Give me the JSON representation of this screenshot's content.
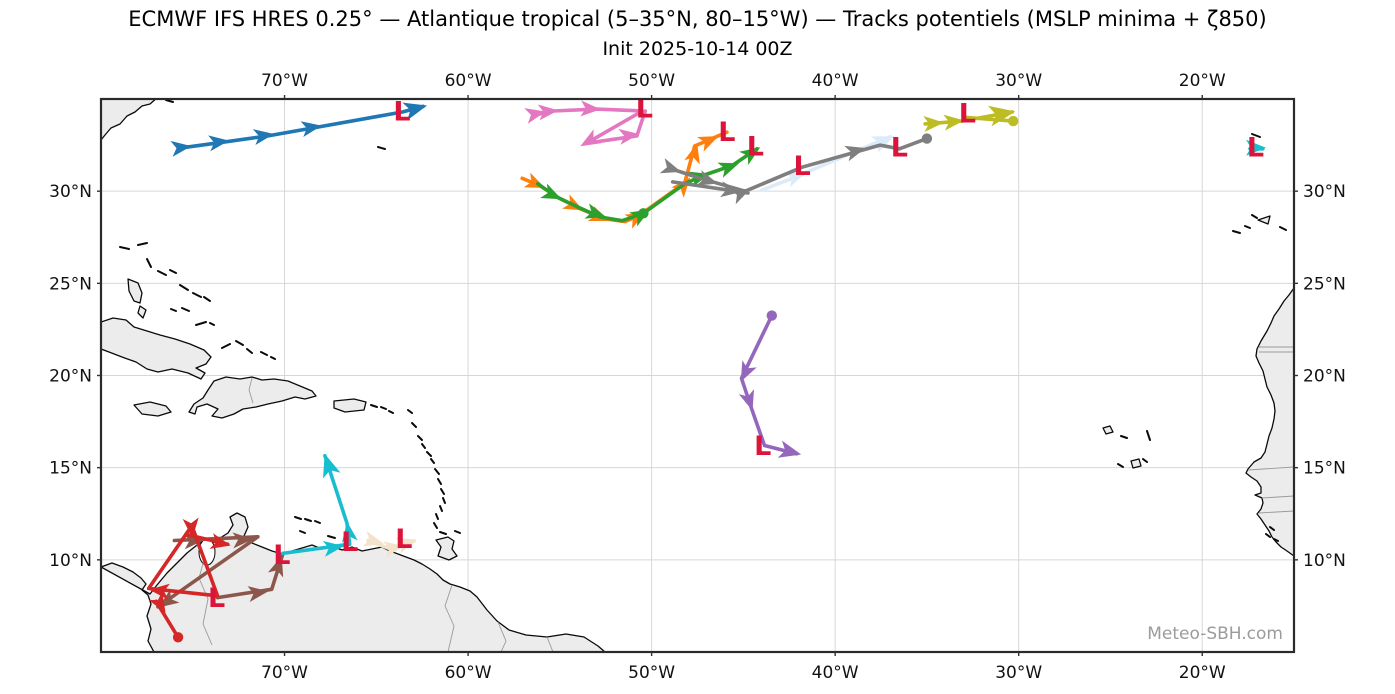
{
  "chart_data": {
    "type": "line",
    "title": "ECMWF IFS HRES 0.25° — Atlantique tropical (5–35°N, 80–15°W) — Tracks potentiels (MSLP minima + ζ850)",
    "subtitle": "Init 2025-10-14 00Z",
    "grid": true,
    "projection": {
      "lon_min_w": 80,
      "lon_max_w": 15,
      "lat_min_n": 5,
      "lat_max_n": 35
    },
    "x_ticks": [
      {
        "value": 70,
        "label": "70°W"
      },
      {
        "value": 60,
        "label": "60°W"
      },
      {
        "value": 50,
        "label": "50°W"
      },
      {
        "value": 40,
        "label": "40°W"
      },
      {
        "value": 30,
        "label": "30°W"
      },
      {
        "value": 20,
        "label": "20°W"
      }
    ],
    "y_ticks": [
      {
        "value": 30,
        "label": "30°N"
      },
      {
        "value": 25,
        "label": "25°N"
      },
      {
        "value": 20,
        "label": "20°N"
      },
      {
        "value": 15,
        "label": "15°N"
      },
      {
        "value": 10,
        "label": "10°N"
      }
    ],
    "low_marker": {
      "glyph": "L",
      "color": "#dc143c"
    },
    "tracks": [
      {
        "name": "lightblue-track",
        "color": "#dcebf8",
        "segments": [
          [
            [
              44.0,
              30.05
            ],
            [
              42.45,
              30.65
            ],
            [
              37.0,
              32.95
            ]
          ]
        ],
        "arrows": [
          [
            41.9,
            30.9,
            -21
          ],
          [
            37.1,
            32.85,
            -23,
            1.1
          ]
        ],
        "dots": [],
        "lows": []
      },
      {
        "name": "cream-track",
        "color": "#f3e3cb",
        "segments": [
          [
            [
              65.45,
              11.05
            ],
            [
              64.25,
              10.6
            ],
            [
              62.95,
              11.0
            ]
          ]
        ],
        "arrows": [
          [
            64.9,
            10.95,
            15
          ],
          [
            63.8,
            10.7,
            -10
          ],
          [
            63.1,
            11.0,
            -18
          ]
        ],
        "dots": [],
        "lows": [
          [
            63.5,
            11.15
          ]
        ]
      },
      {
        "name": "blue-track",
        "color": "#1f77b4",
        "segments": [
          [
            [
              75.6,
              32.35
            ],
            [
              73.4,
              32.65
            ],
            [
              70.9,
              33.0
            ],
            [
              68.35,
              33.45
            ],
            [
              63.55,
              34.3
            ],
            [
              62.45,
              34.6
            ]
          ]
        ],
        "arrows": [
          [
            75.4,
            32.4,
            -8
          ],
          [
            73.35,
            32.7,
            -8
          ],
          [
            70.9,
            33.05,
            -9
          ],
          [
            68.3,
            33.5,
            -10
          ],
          [
            62.6,
            34.55,
            -15,
            1.15
          ]
        ],
        "dots": [],
        "lows": [
          [
            63.6,
            34.35
          ]
        ]
      },
      {
        "name": "pink-track",
        "color": "#e377c2",
        "segments": [
          [
            [
              56.3,
              34.15
            ],
            [
              55.35,
              34.35
            ],
            [
              53.0,
              34.45
            ],
            [
              50.5,
              34.35
            ],
            [
              53.55,
              32.6
            ],
            [
              50.8,
              33.0
            ],
            [
              50.35,
              34.35
            ]
          ]
        ],
        "arrows": [
          [
            56.1,
            34.25,
            -13
          ],
          [
            55.4,
            34.35,
            -6
          ],
          [
            53.1,
            34.45,
            3
          ],
          [
            53.6,
            32.6,
            150
          ],
          [
            51.0,
            33.05,
            -8
          ]
        ],
        "dots": [],
        "lows": [
          [
            50.4,
            34.5
          ]
        ]
      },
      {
        "name": "orange-track",
        "color": "#ff7f0e",
        "segments": [
          [
            [
              57.05,
              30.7
            ],
            [
              56.1,
              30.3
            ],
            [
              55.0,
              29.6
            ],
            [
              53.9,
              29.05
            ],
            [
              52.55,
              28.5
            ],
            [
              51.45,
              28.35
            ],
            [
              50.65,
              28.7
            ],
            [
              48.2,
              30.45
            ],
            [
              47.65,
              32.45
            ],
            [
              45.9,
              33.2
            ]
          ]
        ],
        "arrows": [
          [
            56.1,
            30.3,
            24
          ],
          [
            54.0,
            29.1,
            27
          ],
          [
            52.6,
            28.5,
            22
          ],
          [
            50.6,
            28.7,
            -28
          ],
          [
            48.1,
            30.5,
            -50
          ],
          [
            47.6,
            32.3,
            -75
          ],
          [
            46.65,
            32.85,
            -24
          ]
        ],
        "dots": [],
        "lows": [
          [
            45.9,
            33.25
          ]
        ]
      },
      {
        "name": "green-track",
        "color": "#2ca02c",
        "segments": [
          [
            [
              56.2,
              30.4
            ],
            [
              55.2,
              29.7
            ],
            [
              54.05,
              29.15
            ],
            [
              52.8,
              28.6
            ],
            [
              51.6,
              28.4
            ],
            [
              50.45,
              28.8
            ],
            [
              48.2,
              30.4
            ],
            [
              47.2,
              30.85
            ],
            [
              45.6,
              31.4
            ],
            [
              44.25,
              32.3
            ]
          ]
        ],
        "arrows": [
          [
            55.2,
            29.7,
            25
          ],
          [
            52.8,
            28.7,
            17
          ],
          [
            50.35,
            28.85,
            -30
          ],
          [
            47.15,
            30.85,
            -16
          ],
          [
            45.55,
            31.4,
            -20
          ],
          [
            44.35,
            32.2,
            -34
          ]
        ],
        "dots": [
          [
            50.45,
            28.8
          ]
        ],
        "lows": [
          [
            44.35,
            32.45
          ]
        ]
      },
      {
        "name": "gray-track",
        "color": "#7f7f7f",
        "segments": [
          [
            [
              48.9,
              31.2
            ],
            [
              47.35,
              30.7
            ],
            [
              44.9,
              30.0
            ],
            [
              41.8,
              31.3
            ],
            [
              37.55,
              32.5
            ],
            [
              36.5,
              32.3
            ],
            [
              35.0,
              32.85
            ]
          ],
          [
            [
              48.85,
              30.5
            ],
            [
              44.75,
              29.9
            ]
          ]
        ],
        "arrows": [
          [
            48.7,
            31.15,
            18
          ],
          [
            46.7,
            30.5,
            17
          ],
          [
            44.9,
            30.0,
            -24
          ],
          [
            38.65,
            32.25,
            -16
          ],
          [
            45.45,
            30.0,
            8
          ]
        ],
        "dots": [
          [
            35.0,
            32.85
          ]
        ],
        "lows": [
          [
            41.8,
            31.4
          ],
          [
            36.5,
            32.4
          ]
        ]
      },
      {
        "name": "olive-track",
        "color": "#bcbd22",
        "segments": [
          [
            [
              35.1,
              33.65
            ],
            [
              33.1,
              33.8
            ],
            [
              30.35,
              34.3
            ]
          ],
          [
            [
              32.85,
              34.0
            ],
            [
              30.3,
              33.8
            ]
          ]
        ],
        "arrows": [
          [
            34.4,
            33.7,
            -4
          ],
          [
            33.3,
            33.8,
            -6
          ],
          [
            30.6,
            34.25,
            -10,
            1.3
          ]
        ],
        "dots": [
          [
            30.3,
            33.8
          ]
        ],
        "lows": [
          [
            32.8,
            34.25
          ]
        ]
      },
      {
        "name": "purple-track",
        "color": "#9467bd",
        "segments": [
          [
            [
              43.45,
              23.25
            ],
            [
              45.1,
              19.85
            ],
            [
              44.55,
              18.2
            ],
            [
              43.85,
              16.2
            ],
            [
              42.1,
              15.75
            ]
          ]
        ],
        "arrows": [
          [
            45.0,
            19.95,
            116
          ],
          [
            44.6,
            18.4,
            72
          ],
          [
            42.2,
            15.8,
            14,
            1.1
          ]
        ],
        "dots": [
          [
            43.45,
            23.25
          ]
        ],
        "lows": [
          [
            43.95,
            16.2
          ]
        ]
      },
      {
        "name": "brown-track",
        "color": "#8c564b",
        "segments": [
          [
            [
              76.0,
              11.05
            ],
            [
              71.45,
              11.25
            ],
            [
              76.9,
              7.45
            ]
          ],
          [
            [
              73.65,
              7.95
            ],
            [
              70.7,
              8.4
            ],
            [
              70.1,
              10.3
            ]
          ]
        ],
        "arrows": [
          [
            74.7,
            11.05,
            -3
          ],
          [
            72.05,
            11.1,
            -3
          ],
          [
            76.6,
            7.6,
            145
          ],
          [
            71.2,
            8.25,
            -8
          ],
          [
            70.25,
            9.9,
            -72
          ]
        ],
        "dots": [],
        "lows": []
      },
      {
        "name": "red-track",
        "color": "#d62728",
        "segments": [
          [
            [
              75.05,
              11.85
            ],
            [
              73.65,
              8.05
            ],
            [
              77.4,
              8.45
            ],
            [
              75.05,
              11.85
            ]
          ],
          [
            [
              75.25,
              11.35
            ],
            [
              73.1,
              10.85
            ]
          ],
          [
            [
              77.0,
              7.75
            ],
            [
              75.8,
              5.8
            ]
          ]
        ],
        "arrows": [
          [
            75.05,
            11.5,
            85
          ],
          [
            73.25,
            10.85,
            13
          ],
          [
            77.05,
            8.35,
            186
          ],
          [
            76.65,
            7.4,
            59
          ]
        ],
        "dots": [
          [
            75.8,
            5.8
          ]
        ],
        "lows": [
          [
            73.7,
            7.95
          ]
        ]
      },
      {
        "name": "cyan-track",
        "color": "#17becf",
        "segments": [
          [
            [
              70.1,
              10.35
            ],
            [
              66.45,
              10.85
            ],
            [
              66.6,
              12.0
            ],
            [
              67.8,
              15.65
            ]
          ]
        ],
        "arrows": [
          [
            67.1,
            10.7,
            -8
          ],
          [
            66.55,
            11.75,
            -98
          ],
          [
            67.7,
            15.4,
            -108,
            1.15
          ]
        ],
        "dots": [],
        "lows": [
          [
            70.15,
            10.3
          ],
          [
            66.45,
            11.0
          ]
        ]
      },
      {
        "name": "mini-cyan-track",
        "color": "#17becf",
        "segments": [
          [
            [
              17.4,
              32.3
            ],
            [
              16.7,
              32.3
            ]
          ]
        ],
        "arrows": [
          [
            16.85,
            32.35,
            0
          ]
        ],
        "dots": [],
        "lows": [
          [
            17.1,
            32.4
          ]
        ]
      }
    ]
  },
  "watermark": {
    "text": "Meteo-SBH.com"
  },
  "basemap": {
    "land_fill": "#ececec",
    "coast_color": "#0a0a0a",
    "border_color": "#9a9a9a",
    "grid_color": "#d7d7d7",
    "frame_color": "#2a2a2a",
    "land_paths": [
      "M101,97 L158,97 L150,104 L142,106 L135,112 L127,116 L120,124 L111,128 L105,135 L101,140 Z",
      "M101,322 L113,318 L126,320 L134,327 L147,331 L160,335 L175,339 L190,344 L204,350 L211,357 L206,364 L196,368 L205,373 L201,379 L188,373 L172,369 L158,372 L147,369 L136,362 L122,357 L109,352 L101,349 Z",
      "M134,405 L150,402 L166,406 L171,412 L158,416 L142,414 Z",
      "M208,390 L214,381 L226,377 L240,379 L252,377 L262,380 L274,379 L288,381 L300,386 L312,391 L316,396 L305,399 L295,397 L282,401 L268,404 L256,407 L243,409 L234,414 L222,418 L212,416 L218,409 L207,404 L197,407 L195,414 L189,412 L194,404 L203,398 Z",
      "M334,401 L354,399 L366,402 L364,410 L345,412 L334,408 Z",
      "M128,279 L138,283 L142,293 L140,303 L134,301 L129,291 Z",
      "M140,306 L146,310 L143,318 L138,313 Z",
      "M436,540 L448,537 L454,541 L452,549 L457,556 L449,560 L438,556 L441,547 Z",
      "M101,567 L112,563 L123,567 L133,572 L141,578 L146,584 L142,590 L148,595 L151,604 L147,616 L151,629 L148,641 L154,652 L605,652 L598,646 L584,637 L566,634 L547,637 L526,635 L509,630 L497,621 L487,610 L477,597 L470,591 L460,587 L450,584 L443,580 L437,574 L430,569 L422,564 L414,560 L406,557 L398,554 L390,551 L382,547 L372,549 L362,551 L352,547 L342,550 L332,546 L322,549 L312,545 L302,548 L292,551 L282,554 L272,551 L262,547 L252,543 L244,536 L248,527 L245,517 L237,513 L230,517 L233,525 L228,533 L220,538 L213,543 L205,540 L197,545 L187,553 L177,563 L167,573 L157,585 L150,594 Z",
      "M1294,288 L1289,295 L1284,301 L1279,309 L1274,316 L1271,323 L1267,331 L1261,341 L1257,349 L1256,356 L1259,363 L1263,371 L1265,379 L1267,387 L1271,395 L1274,403 L1275,411 L1274,419 L1272,428 L1269,436 L1267,444 L1265,452 L1261,458 L1254,462 L1248,469 L1246,473 L1251,477 L1257,481 L1261,487 L1261,493 L1255,495 L1262,498 L1263,503 L1261,509 L1257,514 L1261,519 L1265,525 L1269,531 L1272,537 L1276,542 L1281,547 L1287,551 L1294,556 Z",
      "M1258,220 L1270,216 L1268,224 Z",
      "M1103,428 L1110,426 L1113,432 L1106,434 Z",
      "M1131,461 L1139,459 L1141,466 L1133,468 Z"
    ],
    "lake_paths": [
      "M199,552 a8,13 0 1,0 16,0 a8,13 0 1,0 -16,0"
    ],
    "island_paths": [
      "M166,100 l7,2",
      "M378,147 l7,2",
      "M120,247 l9,2 M138,245 l9,-2 M147,259 l4,8 M158,271 l8,4 M170,270 l6,3 M180,285 l8,5 M193,293 l8,4 M204,297 l6,4 M182,308 l7,3 M171,309 l5,2 M196,325 l10,-3 M210,323 l4,2 M222,348 l8,-4 M236,341 l7,4 M247,349 l5,4 M261,352 l6,3 M271,357 l4,2",
      "M371,405 l6,2 M381,407 l5,2 M389,411 l4,2",
      "M408,410 l4,3 M412,423 l4,4 M418,436 l4,4 M422,444 l3,4 M427,452 l4,4 M431,459 l3,4 M435,469 l4,5 M438,479 l3,5 M441,489 l3,5 M443,498 l2,5 M440,506 l2,5 M436,514 l2,5 M434,523 l3,5 M440,532 l6,2 M455,531 l5,2",
      "M295,517 l6,2 M305,519 l6,2 M315,521 l5,2",
      "M328,536 l7,2 M300,531 l5,2",
      "M1252,134 l8,3",
      "M1233,231 l7,2 M1245,226 l5,2 M1252,215 l5,3 M1280,227 l6,3",
      "M1121,436 l6,2 M1147,431 l3,9 M1118,464 l5,3 M1143,459 l4,3",
      "M1270,527 l4,3 M1266,534 l4,3 M1274,539 l4,2"
    ],
    "border_paths": [
      "M252,378 L249,390 L253,403",
      "M197,545 L204,560 L199,578 L208,599 L203,624 L212,645",
      "M452,585 L445,606 L454,626 L448,652",
      "M498,622 L506,641 L501,652",
      "M547,637 L553,652",
      "M1259,347 L1294,347 M1259,352 L1294,352",
      "M1248,470 L1294,467",
      "M1262,498 L1294,496",
      "M1259,513 L1294,511"
    ]
  }
}
